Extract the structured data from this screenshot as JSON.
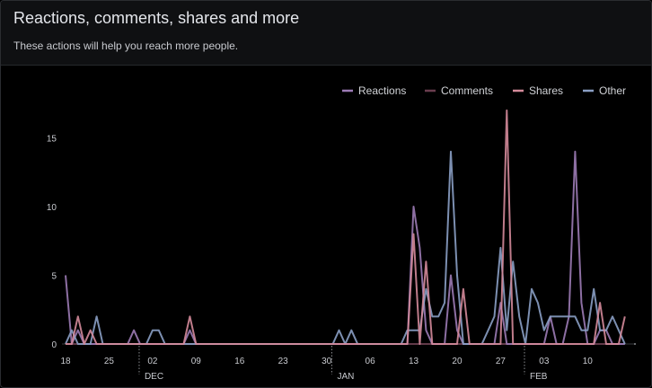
{
  "header": {
    "title": "Reactions, comments, shares and more",
    "subtitle": "These actions will help you reach more people."
  },
  "colors": {
    "Reactions": "#9c7bb5",
    "Comments": "#6a3d4e",
    "Shares": "#d48a9a",
    "Other": "#8a9fc4"
  },
  "chart_data": {
    "type": "line",
    "grid": false,
    "legend_position": "top-right",
    "ylim": [
      0,
      17
    ],
    "yticks": [
      0,
      5,
      10,
      15
    ],
    "x_start": "Nov 18",
    "num_days": 91,
    "xticks": [
      {
        "day": 0,
        "label": "18"
      },
      {
        "day": 7,
        "label": "25"
      },
      {
        "day": 14,
        "label": "02"
      },
      {
        "day": 21,
        "label": "09"
      },
      {
        "day": 28,
        "label": "16"
      },
      {
        "day": 35,
        "label": "23"
      },
      {
        "day": 42,
        "label": "30"
      },
      {
        "day": 49,
        "label": "06"
      },
      {
        "day": 56,
        "label": "13"
      },
      {
        "day": 63,
        "label": "20"
      },
      {
        "day": 70,
        "label": "27"
      },
      {
        "day": 77,
        "label": "03"
      },
      {
        "day": 84,
        "label": "10"
      }
    ],
    "months": [
      {
        "day": 13,
        "label": "DEC"
      },
      {
        "day": 44,
        "label": "JAN"
      },
      {
        "day": 75,
        "label": "FEB"
      }
    ],
    "series": [
      {
        "name": "Reactions",
        "values": [
          5,
          0,
          1,
          0,
          0,
          0,
          0,
          0,
          0,
          0,
          0,
          1,
          0,
          0,
          0,
          0,
          0,
          0,
          0,
          0,
          1,
          0,
          0,
          0,
          0,
          0,
          0,
          0,
          0,
          0,
          0,
          0,
          0,
          0,
          0,
          0,
          0,
          0,
          0,
          0,
          0,
          0,
          0,
          0,
          0,
          0,
          0,
          0,
          0,
          0,
          0,
          0,
          0,
          0,
          0,
          0,
          10,
          7,
          1,
          0,
          0,
          0,
          5,
          1,
          0,
          0,
          0,
          0,
          0,
          0,
          3,
          0,
          0,
          0,
          0,
          0,
          0,
          0,
          2,
          0,
          0,
          2,
          14,
          3,
          0,
          0,
          1,
          1,
          0,
          0,
          0
        ]
      },
      {
        "name": "Comments",
        "values": [
          0,
          0,
          0,
          0,
          0,
          0,
          0,
          0,
          0,
          0,
          0,
          0,
          0,
          0,
          0,
          0,
          0,
          0,
          0,
          0,
          0,
          0,
          0,
          0,
          0,
          0,
          0,
          0,
          0,
          0,
          0,
          0,
          0,
          0,
          0,
          0,
          0,
          0,
          0,
          0,
          0,
          0,
          0,
          0,
          0,
          0,
          0,
          0,
          0,
          0,
          0,
          0,
          0,
          0,
          0,
          0,
          0,
          0,
          0,
          0,
          0,
          0,
          0,
          0,
          0,
          0,
          0,
          0,
          0,
          0,
          0,
          0,
          0,
          0,
          0,
          0,
          0,
          0,
          0,
          0,
          0,
          0,
          0,
          0,
          0,
          0,
          0,
          0,
          0,
          0,
          0
        ]
      },
      {
        "name": "Shares",
        "values": [
          0,
          0,
          2,
          0,
          1,
          0,
          0,
          0,
          0,
          0,
          0,
          0,
          0,
          0,
          0,
          0,
          0,
          0,
          0,
          0,
          2,
          0,
          0,
          0,
          0,
          0,
          0,
          0,
          0,
          0,
          0,
          0,
          0,
          0,
          0,
          0,
          0,
          0,
          0,
          0,
          0,
          0,
          0,
          0,
          0,
          0,
          0,
          0,
          0,
          0,
          0,
          0,
          0,
          0,
          0,
          0,
          8,
          0,
          6,
          0,
          0,
          0,
          0,
          0,
          4,
          0,
          0,
          0,
          0,
          0,
          0,
          17,
          0,
          0,
          0,
          0,
          0,
          0,
          0,
          0,
          0,
          0,
          0,
          0,
          0,
          0,
          3,
          0,
          0,
          0,
          2
        ]
      },
      {
        "name": "Other",
        "values": [
          0,
          1,
          0,
          0,
          0,
          2,
          0,
          0,
          0,
          0,
          0,
          0,
          0,
          0,
          1,
          1,
          0,
          0,
          0,
          0,
          0,
          0,
          0,
          0,
          0,
          0,
          0,
          0,
          0,
          0,
          0,
          0,
          0,
          0,
          0,
          0,
          0,
          0,
          0,
          0,
          0,
          0,
          0,
          0,
          1,
          0,
          1,
          0,
          0,
          0,
          0,
          0,
          0,
          0,
          0,
          1,
          1,
          1,
          4,
          2,
          2,
          3,
          14,
          5,
          0,
          0,
          0,
          0,
          1,
          2,
          7,
          1,
          6,
          2,
          0,
          4,
          3,
          1,
          2,
          2,
          2,
          2,
          2,
          1,
          1,
          4,
          1,
          1,
          2,
          1,
          0
        ]
      }
    ]
  }
}
